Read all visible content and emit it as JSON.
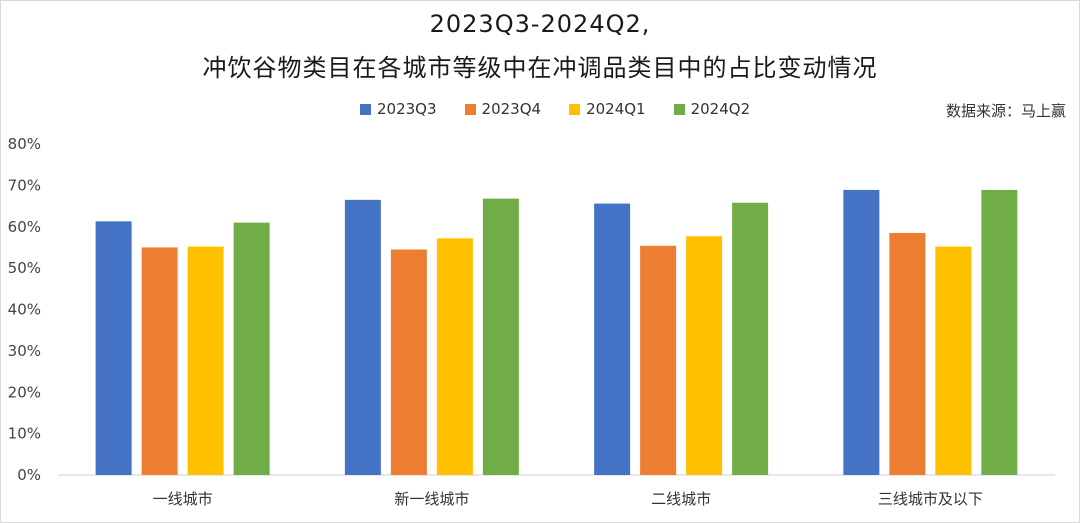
{
  "chart_data": {
    "type": "bar",
    "title": "2023Q3-2024Q2,",
    "subtitle": "冲饮谷物类目在各城市等级中在冲调品类目中的占比变动情况",
    "source": "数据来源：马上赢",
    "categories": [
      "一线城市",
      "新一线城市",
      "二线城市",
      "三线城市及以下"
    ],
    "series": [
      {
        "name": "2023Q3",
        "color": "#4472C4",
        "values": [
          61.3,
          66.5,
          65.6,
          68.9
        ]
      },
      {
        "name": "2023Q4",
        "color": "#ED7D31",
        "values": [
          55.0,
          54.5,
          55.4,
          58.5
        ]
      },
      {
        "name": "2024Q1",
        "color": "#FFC000",
        "values": [
          55.2,
          57.2,
          57.7,
          55.2
        ]
      },
      {
        "name": "2024Q2",
        "color": "#70AD47",
        "values": [
          61.0,
          66.8,
          65.8,
          68.9
        ]
      }
    ],
    "ylim": [
      0,
      80
    ],
    "yticks": [
      "0%",
      "10%",
      "20%",
      "30%",
      "40%",
      "50%",
      "60%",
      "70%",
      "80%"
    ],
    "xlabel": "",
    "ylabel": "",
    "grid": false,
    "legend_position": "top"
  }
}
